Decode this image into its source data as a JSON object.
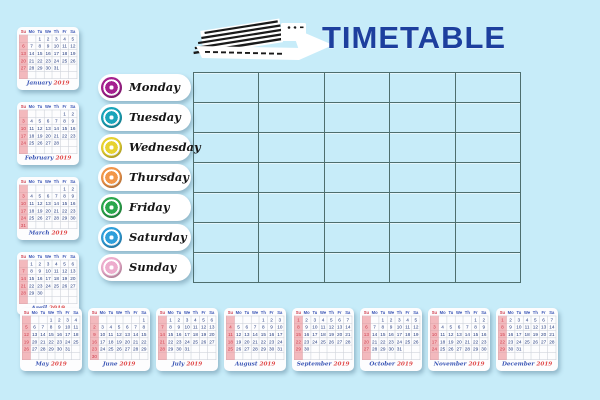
{
  "header": {
    "title": "TIMETABLE"
  },
  "colors": {
    "background": "#c7ecf9",
    "grid_line": "#4e6e6e",
    "title": "#1d3f9e",
    "sunday_highlight": "#f3b9bd",
    "sunday_text": "#cf4050",
    "calendar_text": "#223a7d",
    "month_label": "#3a55b5",
    "year_label": "#e04848"
  },
  "days": [
    {
      "label": "Monday",
      "color": "#a5208f"
    },
    {
      "label": "Tuesday",
      "color": "#1aa5bb"
    },
    {
      "label": "Wednesday",
      "color": "#e7d22f"
    },
    {
      "label": "Thursday",
      "color": "#f29649"
    },
    {
      "label": "Friday",
      "color": "#2aa74c"
    },
    {
      "label": "Saturday",
      "color": "#2f9fdb"
    },
    {
      "label": "Sunday",
      "color": "#edaccd"
    }
  ],
  "timetable_grid": {
    "columns": 5,
    "rows": 7
  },
  "calendar": {
    "weekday_header": [
      "Su",
      "Mo",
      "Tu",
      "We",
      "Th",
      "Fr",
      "Sa"
    ],
    "left_column_months": [
      {
        "month": "January",
        "year": "2019",
        "weeks": [
          [
            "",
            "",
            "1",
            "2",
            "3",
            "4",
            "5"
          ],
          [
            "6",
            "7",
            "8",
            "9",
            "10",
            "11",
            "12"
          ],
          [
            "13",
            "14",
            "15",
            "16",
            "17",
            "18",
            "19"
          ],
          [
            "20",
            "21",
            "22",
            "23",
            "24",
            "25",
            "26"
          ],
          [
            "27",
            "28",
            "29",
            "30",
            "31",
            "",
            ""
          ],
          [
            "",
            "",
            "",
            "",
            "",
            "",
            ""
          ]
        ]
      },
      {
        "month": "February",
        "year": "2019",
        "weeks": [
          [
            "",
            "",
            "",
            "",
            "",
            "1",
            "2"
          ],
          [
            "3",
            "4",
            "5",
            "6",
            "7",
            "8",
            "9"
          ],
          [
            "10",
            "11",
            "12",
            "13",
            "14",
            "15",
            "16"
          ],
          [
            "17",
            "18",
            "19",
            "20",
            "21",
            "22",
            "23"
          ],
          [
            "24",
            "25",
            "26",
            "27",
            "28",
            "",
            ""
          ],
          [
            "",
            "",
            "",
            "",
            "",
            "",
            ""
          ]
        ]
      },
      {
        "month": "March",
        "year": "2019",
        "weeks": [
          [
            "",
            "",
            "",
            "",
            "",
            "1",
            "2"
          ],
          [
            "3",
            "4",
            "5",
            "6",
            "7",
            "8",
            "9"
          ],
          [
            "10",
            "11",
            "12",
            "13",
            "14",
            "15",
            "16"
          ],
          [
            "17",
            "18",
            "19",
            "20",
            "21",
            "22",
            "23"
          ],
          [
            "24",
            "25",
            "26",
            "27",
            "28",
            "29",
            "30"
          ],
          [
            "31",
            "",
            "",
            "",
            "",
            "",
            ""
          ]
        ]
      },
      {
        "month": "April",
        "year": "2019",
        "weeks": [
          [
            "",
            "1",
            "2",
            "3",
            "4",
            "5",
            "6"
          ],
          [
            "7",
            "8",
            "9",
            "10",
            "11",
            "12",
            "13"
          ],
          [
            "14",
            "15",
            "16",
            "17",
            "18",
            "19",
            "20"
          ],
          [
            "21",
            "22",
            "23",
            "24",
            "25",
            "26",
            "27"
          ],
          [
            "28",
            "29",
            "30",
            "",
            "",
            "",
            ""
          ],
          [
            "",
            "",
            "",
            "",
            "",
            "",
            ""
          ]
        ]
      }
    ],
    "bottom_row_months": [
      {
        "month": "May",
        "year": "2019",
        "weeks": [
          [
            "",
            "",
            "",
            "1",
            "2",
            "3",
            "4"
          ],
          [
            "5",
            "6",
            "7",
            "8",
            "9",
            "10",
            "11"
          ],
          [
            "12",
            "13",
            "14",
            "15",
            "16",
            "17",
            "18"
          ],
          [
            "19",
            "20",
            "21",
            "22",
            "23",
            "24",
            "25"
          ],
          [
            "26",
            "27",
            "28",
            "29",
            "30",
            "31",
            ""
          ],
          [
            "",
            "",
            "",
            "",
            "",
            "",
            ""
          ]
        ]
      },
      {
        "month": "June",
        "year": "2019",
        "weeks": [
          [
            "",
            "",
            "",
            "",
            "",
            "",
            "1"
          ],
          [
            "2",
            "3",
            "4",
            "5",
            "6",
            "7",
            "8"
          ],
          [
            "9",
            "10",
            "11",
            "12",
            "13",
            "14",
            "15"
          ],
          [
            "16",
            "17",
            "18",
            "19",
            "20",
            "21",
            "22"
          ],
          [
            "23",
            "24",
            "25",
            "26",
            "27",
            "28",
            "29"
          ],
          [
            "30",
            "",
            "",
            "",
            "",
            "",
            ""
          ]
        ]
      },
      {
        "month": "July",
        "year": "2019",
        "weeks": [
          [
            "",
            "1",
            "2",
            "3",
            "4",
            "5",
            "6"
          ],
          [
            "7",
            "8",
            "9",
            "10",
            "11",
            "12",
            "13"
          ],
          [
            "14",
            "15",
            "16",
            "17",
            "18",
            "19",
            "20"
          ],
          [
            "21",
            "22",
            "23",
            "24",
            "25",
            "26",
            "27"
          ],
          [
            "28",
            "29",
            "30",
            "31",
            "",
            "",
            ""
          ],
          [
            "",
            "",
            "",
            "",
            "",
            "",
            ""
          ]
        ]
      },
      {
        "month": "August",
        "year": "2019",
        "weeks": [
          [
            "",
            "",
            "",
            "",
            "1",
            "2",
            "3"
          ],
          [
            "4",
            "5",
            "6",
            "7",
            "8",
            "9",
            "10"
          ],
          [
            "11",
            "12",
            "13",
            "14",
            "15",
            "16",
            "17"
          ],
          [
            "18",
            "19",
            "20",
            "21",
            "22",
            "23",
            "24"
          ],
          [
            "25",
            "26",
            "27",
            "28",
            "29",
            "30",
            "31"
          ],
          [
            "",
            "",
            "",
            "",
            "",
            "",
            ""
          ]
        ]
      },
      {
        "month": "September",
        "year": "2019",
        "weeks": [
          [
            "1",
            "2",
            "3",
            "4",
            "5",
            "6",
            "7"
          ],
          [
            "8",
            "9",
            "10",
            "11",
            "12",
            "13",
            "14"
          ],
          [
            "15",
            "16",
            "17",
            "18",
            "19",
            "20",
            "21"
          ],
          [
            "22",
            "23",
            "24",
            "25",
            "26",
            "27",
            "28"
          ],
          [
            "29",
            "30",
            "",
            "",
            "",
            "",
            ""
          ],
          [
            "",
            "",
            "",
            "",
            "",
            "",
            ""
          ]
        ]
      },
      {
        "month": "October",
        "year": "2019",
        "weeks": [
          [
            "",
            "",
            "1",
            "2",
            "3",
            "4",
            "5"
          ],
          [
            "6",
            "7",
            "8",
            "9",
            "10",
            "11",
            "12"
          ],
          [
            "13",
            "14",
            "15",
            "16",
            "17",
            "18",
            "19"
          ],
          [
            "20",
            "21",
            "22",
            "23",
            "24",
            "25",
            "26"
          ],
          [
            "27",
            "28",
            "29",
            "30",
            "31",
            "",
            ""
          ],
          [
            "",
            "",
            "",
            "",
            "",
            "",
            ""
          ]
        ]
      },
      {
        "month": "November",
        "year": "2019",
        "weeks": [
          [
            "",
            "",
            "",
            "",
            "",
            "1",
            "2"
          ],
          [
            "3",
            "4",
            "5",
            "6",
            "7",
            "8",
            "9"
          ],
          [
            "10",
            "11",
            "12",
            "13",
            "14",
            "15",
            "16"
          ],
          [
            "17",
            "18",
            "19",
            "20",
            "21",
            "22",
            "23"
          ],
          [
            "24",
            "25",
            "26",
            "27",
            "28",
            "29",
            "30"
          ],
          [
            "",
            "",
            "",
            "",
            "",
            "",
            ""
          ]
        ]
      },
      {
        "month": "December",
        "year": "2019",
        "weeks": [
          [
            "1",
            "2",
            "3",
            "4",
            "5",
            "6",
            "7"
          ],
          [
            "8",
            "9",
            "10",
            "11",
            "12",
            "13",
            "14"
          ],
          [
            "15",
            "16",
            "17",
            "18",
            "19",
            "20",
            "21"
          ],
          [
            "22",
            "23",
            "24",
            "25",
            "26",
            "27",
            "28"
          ],
          [
            "29",
            "30",
            "31",
            "",
            "",
            "",
            ""
          ],
          [
            "",
            "",
            "",
            "",
            "",
            "",
            ""
          ]
        ]
      }
    ]
  }
}
